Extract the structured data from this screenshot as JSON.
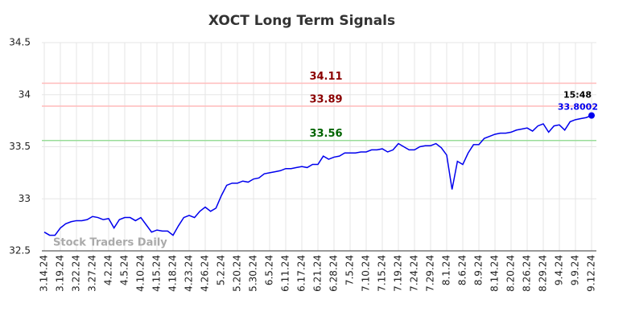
{
  "chart_data": {
    "type": "line",
    "title": "XOCT Long Term Signals",
    "watermark": "Stock Traders Daily",
    "categories": [
      "3.14.24",
      null,
      null,
      "3.19.24",
      null,
      null,
      "3.22.24",
      null,
      null,
      "3.27.24",
      null,
      null,
      "4.2.24",
      null,
      null,
      "4.5.24",
      null,
      null,
      "4.10.24",
      null,
      null,
      "4.15.24",
      null,
      null,
      "4.18.24",
      null,
      null,
      "4.23.24",
      null,
      null,
      "4.26.24",
      null,
      null,
      "5.2.24",
      null,
      null,
      "5.20.24",
      null,
      null,
      "5.30.24",
      null,
      null,
      "6.5.24",
      null,
      null,
      "6.11.24",
      null,
      null,
      "6.17.24",
      null,
      null,
      "6.21.24",
      null,
      null,
      "6.28.24",
      null,
      null,
      "7.5.24",
      null,
      null,
      "7.10.24",
      null,
      null,
      "7.15.24",
      null,
      null,
      "7.19.24",
      null,
      null,
      "7.24.24",
      null,
      null,
      "7.29.24",
      null,
      null,
      "8.1.24",
      null,
      null,
      "8.6.24",
      null,
      null,
      "8.9.24",
      null,
      null,
      "8.14.24",
      null,
      null,
      "8.20.24",
      null,
      null,
      "8.26.24",
      null,
      null,
      "8.29.24",
      null,
      null,
      "9.4.24",
      null,
      null,
      "9.9.24",
      null,
      null,
      "9.12.24"
    ],
    "values": [
      32.68,
      32.65,
      32.65,
      32.72,
      32.76,
      32.78,
      32.79,
      32.79,
      32.8,
      32.83,
      32.82,
      32.8,
      32.81,
      32.72,
      32.8,
      32.82,
      32.82,
      32.79,
      32.82,
      32.75,
      32.68,
      32.7,
      32.69,
      32.69,
      32.65,
      32.74,
      32.82,
      32.84,
      32.82,
      32.88,
      32.92,
      32.88,
      32.91,
      33.03,
      33.13,
      33.15,
      33.15,
      33.17,
      33.16,
      33.19,
      33.2,
      33.24,
      33.25,
      33.26,
      33.27,
      33.29,
      33.29,
      33.3,
      33.31,
      33.3,
      33.33,
      33.33,
      33.41,
      33.38,
      33.4,
      33.41,
      33.44,
      33.44,
      33.44,
      33.45,
      33.45,
      33.47,
      33.47,
      33.48,
      33.45,
      33.47,
      33.53,
      33.5,
      33.47,
      33.47,
      33.5,
      33.51,
      33.51,
      33.53,
      33.49,
      33.42,
      33.09,
      33.36,
      33.33,
      33.44,
      33.52,
      33.52,
      33.58,
      33.6,
      33.62,
      33.63,
      33.63,
      33.64,
      33.66,
      33.67,
      33.68,
      33.65,
      33.7,
      33.72,
      33.64,
      33.7,
      33.71,
      33.66,
      33.74,
      33.76,
      33.77,
      33.78,
      33.8002
    ],
    "color": "#0000ee",
    "last_time": "15:48",
    "hlines": [
      {
        "value": 34.11,
        "color": "#ffbbbb",
        "label_color": "#8b0000"
      },
      {
        "value": 33.89,
        "color": "#ffbbbb",
        "label_color": "#8b0000"
      },
      {
        "value": 33.56,
        "color": "#99dd99",
        "label_color": "#006400"
      }
    ],
    "ylim": [
      32.5,
      34.5
    ],
    "yticks": [
      32.5,
      33,
      33.5,
      34,
      34.5
    ],
    "grid": true
  }
}
